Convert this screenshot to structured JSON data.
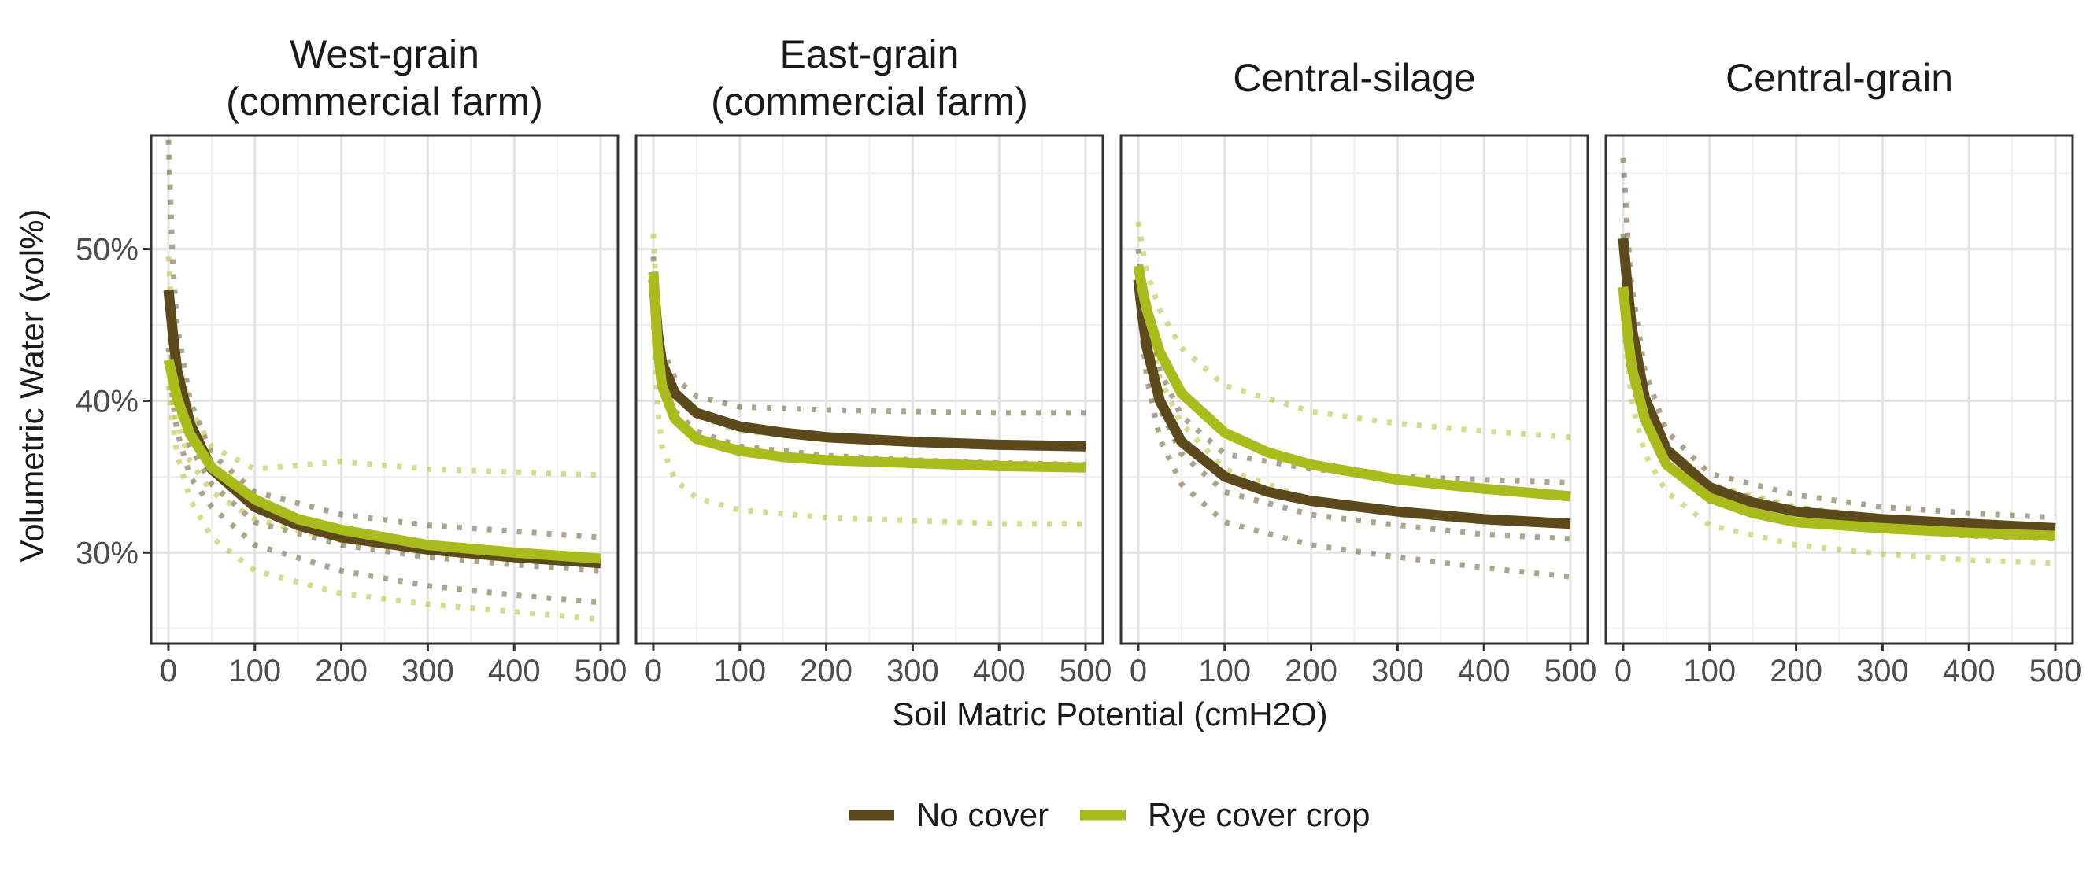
{
  "chart_data": {
    "type": "line",
    "xlabel": "Soil Matric Potential (cmH2O)",
    "ylabel": "Volumetric Water (vol%)",
    "xlim": [
      -20,
      520
    ],
    "ylim": [
      24,
      57.5
    ],
    "x_ticks": [
      0,
      100,
      200,
      300,
      400,
      500
    ],
    "y_ticks": [
      30,
      40,
      50
    ],
    "y_tick_labels": [
      "30%",
      "40%",
      "50%"
    ],
    "grid": true,
    "legend_position": "bottom",
    "series_styles": [
      {
        "name": "No cover",
        "color": "#5c4a1c"
      },
      {
        "name": "Rye cover crop",
        "color": "#a9bc1c"
      }
    ],
    "panels": [
      {
        "title": [
          "West-grain",
          "(commercial farm)"
        ],
        "series": [
          {
            "name": "No cover",
            "mean": {
              "x": [
                0,
                5,
                10,
                25,
                50,
                100,
                150,
                200,
                300,
                400,
                500
              ],
              "y": [
                47.3,
                44.5,
                42.0,
                38.5,
                35.5,
                33.0,
                31.8,
                31.0,
                30.2,
                29.7,
                29.3
              ]
            },
            "replicates": [
              {
                "x": [
                  0,
                  5,
                  10,
                  25,
                  50,
                  100,
                  200,
                  300,
                  400,
                  500
                ],
                "y": [
                  57.2,
                  49.0,
                  45.0,
                  40.0,
                  36.5,
                  34.0,
                  32.5,
                  31.8,
                  31.4,
                  31.0
                ]
              },
              {
                "x": [
                  0,
                  5,
                  10,
                  25,
                  50,
                  100,
                  200,
                  300,
                  400,
                  500
                ],
                "y": [
                  46.0,
                  42.0,
                  40.0,
                  37.0,
                  34.5,
                  32.0,
                  30.5,
                  29.7,
                  29.2,
                  28.8
                ]
              },
              {
                "x": [
                  0,
                  5,
                  10,
                  25,
                  50,
                  100,
                  200,
                  300,
                  400,
                  500
                ],
                "y": [
                  43.5,
                  40.0,
                  38.0,
                  35.0,
                  33.0,
                  30.5,
                  28.8,
                  27.8,
                  27.2,
                  26.7
                ]
              }
            ]
          },
          {
            "name": "Rye cover crop",
            "mean": {
              "x": [
                0,
                5,
                10,
                25,
                50,
                100,
                150,
                200,
                300,
                400,
                500
              ],
              "y": [
                42.7,
                41.5,
                40.2,
                37.8,
                35.6,
                33.5,
                32.2,
                31.5,
                30.5,
                30.0,
                29.6
              ]
            },
            "replicates": [
              {
                "x": [
                  0,
                  5,
                  10,
                  25,
                  50,
                  100,
                  200,
                  300,
                  400,
                  500
                ],
                "y": [
                  49.5,
                  45.0,
                  43.0,
                  39.5,
                  37.0,
                  35.5,
                  36.0,
                  35.5,
                  35.3,
                  35.1
                ]
              },
              {
                "x": [
                  0,
                  5,
                  10,
                  25,
                  50,
                  100,
                  200,
                  300,
                  400,
                  500
                ],
                "y": [
                  42.0,
                  40.0,
                  38.5,
                  36.0,
                  34.0,
                  32.2,
                  30.8,
                  30.0,
                  29.5,
                  29.2
                ]
              },
              {
                "x": [
                  0,
                  5,
                  10,
                  25,
                  50,
                  100,
                  200,
                  300,
                  400,
                  500
                ],
                "y": [
                  41.0,
                  38.5,
                  36.5,
                  33.5,
                  31.0,
                  28.8,
                  27.3,
                  26.6,
                  26.1,
                  25.6
                ]
              }
            ]
          }
        ]
      },
      {
        "title": [
          "East-grain",
          "(commercial farm)"
        ],
        "series": [
          {
            "name": "No cover",
            "mean": {
              "x": [
                0,
                5,
                10,
                25,
                50,
                100,
                150,
                200,
                300,
                400,
                500
              ],
              "y": [
                48.0,
                44.5,
                42.5,
                40.5,
                39.2,
                38.3,
                37.9,
                37.6,
                37.3,
                37.1,
                37.0
              ]
            },
            "replicates": [
              {
                "x": [
                  0,
                  5,
                  10,
                  25,
                  50,
                  100,
                  200,
                  300,
                  400,
                  500
                ],
                "y": [
                  49.5,
                  45.5,
                  43.5,
                  41.5,
                  40.3,
                  39.6,
                  39.4,
                  39.3,
                  39.2,
                  39.2
                ]
              },
              {
                "x": [
                  0,
                  5,
                  10,
                  25,
                  50,
                  100,
                  200,
                  300,
                  400,
                  500
                ],
                "y": [
                  47.0,
                  43.5,
                  41.5,
                  39.3,
                  38.0,
                  37.0,
                  36.4,
                  36.1,
                  35.9,
                  35.8
                ]
              }
            ]
          },
          {
            "name": "Rye cover crop",
            "mean": {
              "x": [
                0,
                5,
                10,
                25,
                50,
                100,
                150,
                200,
                300,
                400,
                500
              ],
              "y": [
                48.5,
                43.5,
                41.0,
                38.8,
                37.5,
                36.7,
                36.3,
                36.1,
                35.9,
                35.7,
                35.6
              ]
            },
            "replicates": [
              {
                "x": [
                  0,
                  5,
                  10,
                  25,
                  50,
                  100,
                  200,
                  300,
                  400,
                  500
                ],
                "y": [
                  51.0,
                  45.5,
                  43.0,
                  40.5,
                  39.0,
                  38.0,
                  37.5,
                  37.2,
                  37.0,
                  36.9
                ]
              },
              {
                "x": [
                  0,
                  5,
                  10,
                  25,
                  50,
                  100,
                  200,
                  300,
                  400,
                  500
                ],
                "y": [
                  45.0,
                  39.5,
                  37.0,
                  34.8,
                  33.6,
                  32.8,
                  32.3,
                  32.1,
                  31.9,
                  31.9
                ]
              }
            ]
          }
        ]
      },
      {
        "title": [
          "Central-silage"
        ],
        "series": [
          {
            "name": "No cover",
            "mean": {
              "x": [
                0,
                5,
                10,
                25,
                50,
                100,
                150,
                200,
                300,
                400,
                500
              ],
              "y": [
                48.0,
                45.5,
                43.5,
                40.0,
                37.3,
                35.0,
                34.0,
                33.4,
                32.7,
                32.2,
                31.9
              ]
            },
            "replicates": [
              {
                "x": [
                  0,
                  5,
                  10,
                  25,
                  50,
                  100,
                  200,
                  300,
                  400,
                  500
                ],
                "y": [
                  50.0,
                  47.5,
                  45.5,
                  42.0,
                  39.0,
                  36.5,
                  35.5,
                  35.0,
                  34.8,
                  34.6
                ]
              },
              {
                "x": [
                  0,
                  5,
                  10,
                  25,
                  50,
                  100,
                  200,
                  300,
                  400,
                  500
                ],
                "y": [
                  48.0,
                  45.0,
                  43.0,
                  39.5,
                  36.5,
                  34.0,
                  32.5,
                  31.8,
                  31.2,
                  30.9
                ]
              },
              {
                "x": [
                  0,
                  5,
                  10,
                  25,
                  50,
                  100,
                  200,
                  300,
                  400,
                  500
                ],
                "y": [
                  47.0,
                  44.0,
                  41.5,
                  37.5,
                  34.5,
                  32.0,
                  30.5,
                  29.7,
                  29.0,
                  28.4
                ]
              }
            ]
          },
          {
            "name": "Rye cover crop",
            "mean": {
              "x": [
                0,
                5,
                10,
                25,
                50,
                100,
                150,
                200,
                300,
                400,
                500
              ],
              "y": [
                48.9,
                47.3,
                46.0,
                43.2,
                40.5,
                37.9,
                36.6,
                35.8,
                34.8,
                34.2,
                33.7
              ]
            },
            "replicates": [
              {
                "x": [
                  0,
                  5,
                  10,
                  25,
                  50,
                  100,
                  200,
                  300,
                  400,
                  500
                ],
                "y": [
                  51.8,
                  50.0,
                  48.5,
                  46.0,
                  43.5,
                  41.0,
                  39.3,
                  38.5,
                  38.0,
                  37.6
                ]
              },
              {
                "x": [
                  0,
                  5,
                  10,
                  25,
                  50,
                  100,
                  200,
                  300,
                  400,
                  500
                ],
                "y": [
                  48.5,
                  46.5,
                  45.0,
                  41.5,
                  38.5,
                  35.5,
                  33.5,
                  32.5,
                  32.0,
                  31.8
                ]
              }
            ]
          }
        ]
      },
      {
        "title": [
          "Central-grain"
        ],
        "series": [
          {
            "name": "No cover",
            "mean": {
              "x": [
                0,
                5,
                10,
                25,
                50,
                100,
                150,
                200,
                300,
                400,
                500
              ],
              "y": [
                50.7,
                47.5,
                44.8,
                40.2,
                36.8,
                34.3,
                33.3,
                32.7,
                32.2,
                31.9,
                31.6
              ]
            },
            "replicates": [
              {
                "x": [
                  0,
                  5,
                  10,
                  25,
                  50,
                  100,
                  200,
                  300,
                  400,
                  500
                ],
                "y": [
                  56.0,
                  51.0,
                  47.5,
                  42.0,
                  38.0,
                  35.2,
                  33.8,
                  33.0,
                  32.6,
                  32.3
                ]
              },
              {
                "x": [
                  0,
                  5,
                  10,
                  25,
                  50,
                  100,
                  200,
                  300,
                  400,
                  500
                ],
                "y": [
                  51.0,
                  47.5,
                  44.8,
                  40.3,
                  36.8,
                  34.3,
                  32.9,
                  32.3,
                  31.9,
                  31.6
                ]
              },
              {
                "x": [
                  0,
                  5,
                  10,
                  25,
                  50,
                  100,
                  200,
                  300,
                  400,
                  500
                ],
                "y": [
                  49.5,
                  45.5,
                  43.0,
                  38.8,
                  35.7,
                  33.4,
                  32.1,
                  31.5,
                  31.1,
                  30.9
                ]
              }
            ]
          },
          {
            "name": "Rye cover crop",
            "mean": {
              "x": [
                0,
                5,
                10,
                25,
                50,
                100,
                150,
                200,
                300,
                400,
                500
              ],
              "y": [
                47.5,
                44.5,
                42.2,
                38.8,
                35.8,
                33.6,
                32.6,
                32.0,
                31.6,
                31.3,
                31.1
              ]
            },
            "replicates": [
              {
                "x": [
                  0,
                  5,
                  10,
                  25,
                  50,
                  100,
                  200,
                  300,
                  400,
                  500
                ],
                "y": [
                  50.0,
                  46.5,
                  44.0,
                  40.0,
                  37.0,
                  34.5,
                  33.0,
                  32.3,
                  31.9,
                  31.6
                ]
              },
              {
                "x": [
                  0,
                  5,
                  10,
                  25,
                  50,
                  100,
                  200,
                  300,
                  400,
                  500
                ],
                "y": [
                  46.0,
                  42.5,
                  40.0,
                  36.5,
                  34.0,
                  31.8,
                  30.5,
                  29.9,
                  29.5,
                  29.3
                ]
              }
            ]
          }
        ]
      }
    ]
  }
}
